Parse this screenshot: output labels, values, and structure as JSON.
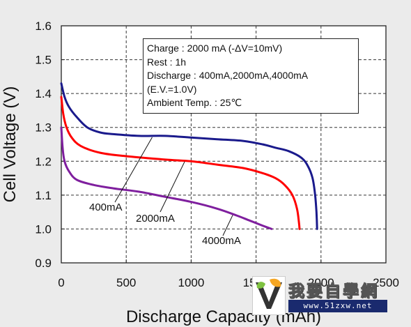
{
  "chart_data": {
    "type": "line",
    "xlabel": "Discharge Capacity (mAh)",
    "ylabel": "Cell Voltage (V)",
    "xlim": [
      0,
      2500
    ],
    "ylim": [
      0.9,
      1.6
    ],
    "xticks": [
      0,
      500,
      1000,
      1500,
      2000,
      2500
    ],
    "xtick_labels": [
      "0",
      "500",
      "1000",
      "1500",
      "2000",
      "2500"
    ],
    "yticks": [
      0.9,
      1.0,
      1.1,
      1.2,
      1.3,
      1.4,
      1.5,
      1.6
    ],
    "ytick_labels": [
      "0.9",
      "1.0",
      "1.1",
      "1.2",
      "1.3",
      "1.4",
      "1.5",
      "1.6"
    ],
    "grid": true,
    "series": [
      {
        "name": "400mA",
        "color": "#1a1a8c",
        "points": [
          [
            0,
            1.43
          ],
          [
            25,
            1.39
          ],
          [
            60,
            1.36
          ],
          [
            120,
            1.33
          ],
          [
            200,
            1.3
          ],
          [
            300,
            1.285
          ],
          [
            400,
            1.28
          ],
          [
            600,
            1.275
          ],
          [
            800,
            1.275
          ],
          [
            1000,
            1.27
          ],
          [
            1200,
            1.265
          ],
          [
            1400,
            1.26
          ],
          [
            1550,
            1.25
          ],
          [
            1650,
            1.24
          ],
          [
            1750,
            1.23
          ],
          [
            1850,
            1.21
          ],
          [
            1900,
            1.185
          ],
          [
            1935,
            1.15
          ],
          [
            1955,
            1.1
          ],
          [
            1965,
            1.05
          ],
          [
            1970,
            1.0
          ]
        ]
      },
      {
        "name": "2000mA",
        "color": "#ff0000",
        "points": [
          [
            0,
            1.39
          ],
          [
            15,
            1.34
          ],
          [
            40,
            1.3
          ],
          [
            80,
            1.27
          ],
          [
            150,
            1.245
          ],
          [
            300,
            1.225
          ],
          [
            500,
            1.215
          ],
          [
            800,
            1.205
          ],
          [
            1000,
            1.2
          ],
          [
            1200,
            1.19
          ],
          [
            1400,
            1.18
          ],
          [
            1550,
            1.165
          ],
          [
            1650,
            1.15
          ],
          [
            1720,
            1.13
          ],
          [
            1780,
            1.1
          ],
          [
            1815,
            1.06
          ],
          [
            1830,
            1.02
          ],
          [
            1835,
            1.0
          ]
        ]
      },
      {
        "name": "4000mA",
        "color": "#7f1f9e",
        "points": [
          [
            0,
            1.3
          ],
          [
            10,
            1.24
          ],
          [
            25,
            1.2
          ],
          [
            60,
            1.17
          ],
          [
            120,
            1.145
          ],
          [
            250,
            1.13
          ],
          [
            400,
            1.12
          ],
          [
            600,
            1.11
          ],
          [
            800,
            1.095
          ],
          [
            1000,
            1.08
          ],
          [
            1200,
            1.06
          ],
          [
            1350,
            1.04
          ],
          [
            1450,
            1.025
          ],
          [
            1550,
            1.01
          ],
          [
            1620,
            1.0
          ]
        ]
      }
    ],
    "annotations": [
      "400mA",
      "2000mA",
      "4000mA"
    ]
  },
  "info_box": {
    "lines": [
      "Charge : 2000 mA (-ΔV=10mV)",
      "Rest : 1h",
      "Discharge : 400mA,2000mA,4000mA",
      "(E.V.=1.0V)",
      "Ambient Temp. : 25℃"
    ]
  },
  "watermark": {
    "text": "我要自學網",
    "url": "www.51zxw.net"
  }
}
